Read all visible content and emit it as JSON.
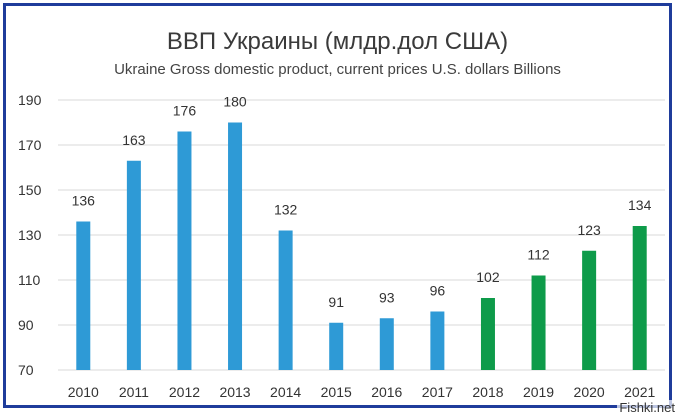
{
  "watermark": "Fishki.net",
  "chart_data": {
    "type": "bar",
    "title": "ВВП Украины (млдр.дол США)",
    "subtitle": "Ukraine Gross domestic product, current prices U.S. dollars Billions",
    "xlabel": "",
    "ylabel": "",
    "categories": [
      "2010",
      "2011",
      "2012",
      "2013",
      "2014",
      "2015",
      "2016",
      "2017",
      "2018",
      "2019",
      "2020",
      "2021"
    ],
    "values": [
      136,
      163,
      176,
      180,
      132,
      91,
      93,
      96,
      102,
      112,
      123,
      134
    ],
    "data_labels": [
      "136",
      "163",
      "176",
      "180",
      "132",
      "91",
      "93",
      "96",
      "102",
      "112",
      "123",
      "134"
    ],
    "ylim": [
      70,
      190
    ],
    "yticks": [
      "70",
      "90",
      "110",
      "130",
      "150",
      "170",
      "190"
    ],
    "bar_colors": [
      "#2e9ad6",
      "#2e9ad6",
      "#2e9ad6",
      "#2e9ad6",
      "#2e9ad6",
      "#2e9ad6",
      "#2e9ad6",
      "#2e9ad6",
      "#0e9b4a",
      "#0e9b4a",
      "#0e9b4a",
      "#0e9b4a"
    ],
    "grid": true,
    "legend": "none"
  }
}
